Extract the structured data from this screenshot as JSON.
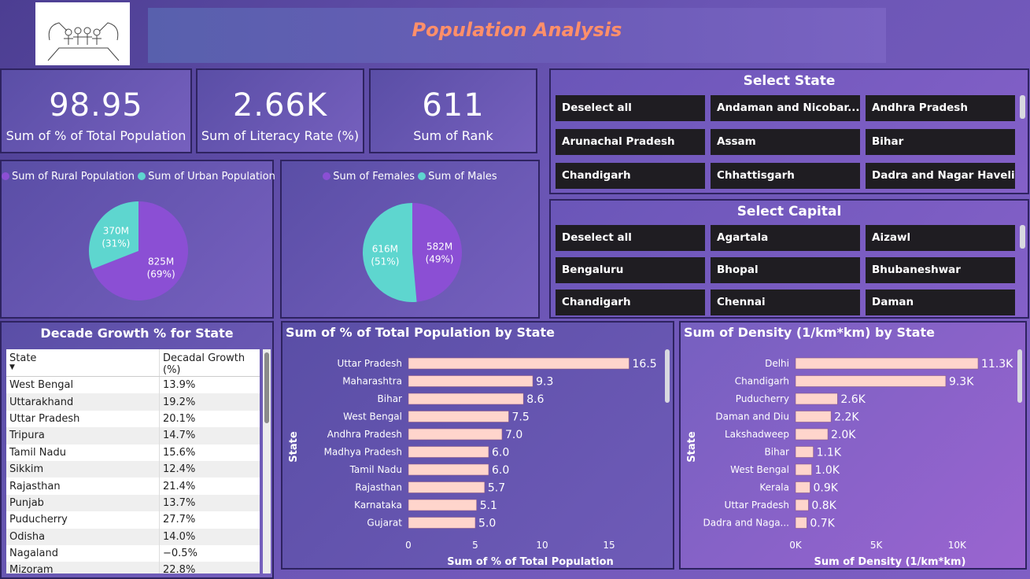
{
  "header": {
    "title": "Population Analysis"
  },
  "kpis": [
    {
      "value": "98.95",
      "label": "Sum of % of Total Population"
    },
    {
      "value": "2.66K",
      "label": "Sum of Literacy Rate (%)"
    },
    {
      "value": "611",
      "label": "Sum of Rank"
    }
  ],
  "pie_rural_urban": {
    "legend": [
      "Sum of Rural Population",
      "Sum of Urban Population"
    ],
    "colors": [
      "#8b4fd4",
      "#5ed6cf"
    ],
    "slices": [
      {
        "name": "Sum of Rural Population",
        "value": 825,
        "label": "825M",
        "pct": "(69%)"
      },
      {
        "name": "Sum of Urban Population",
        "value": 370,
        "label": "370M",
        "pct": "(31%)"
      }
    ]
  },
  "pie_gender": {
    "legend": [
      "Sum of Females",
      "Sum of Males"
    ],
    "colors": [
      "#8b4fd4",
      "#5ed6cf"
    ],
    "slices": [
      {
        "name": "Sum of Females",
        "value": 582,
        "label": "582M",
        "pct": "(49%)"
      },
      {
        "name": "Sum of Males",
        "value": 616,
        "label": "616M",
        "pct": "(51%)"
      }
    ]
  },
  "select_state": {
    "title": "Select State",
    "items": [
      "Deselect all",
      "Andaman and Nicobar...",
      "Andhra Pradesh",
      "Arunachal Pradesh",
      "Assam",
      "Bihar",
      "Chandigarh",
      "Chhattisgarh",
      "Dadra and Nagar Haveli"
    ]
  },
  "select_capital": {
    "title": "Select Capital",
    "items": [
      "Deselect all",
      "Agartala",
      "Aizawl",
      "Bengaluru",
      "Bhopal",
      "Bhubaneshwar",
      "Chandigarh",
      "Chennai",
      "Daman"
    ]
  },
  "growth_table": {
    "title": "Decade Growth % for State",
    "headers": [
      "State",
      "Decadal Growth (%)"
    ],
    "rows": [
      [
        "West Bengal",
        "13.9%"
      ],
      [
        "Uttarakhand",
        "19.2%"
      ],
      [
        "Uttar Pradesh",
        "20.1%"
      ],
      [
        "Tripura",
        "14.7%"
      ],
      [
        "Tamil Nadu",
        "15.6%"
      ],
      [
        "Sikkim",
        "12.4%"
      ],
      [
        "Rajasthan",
        "21.4%"
      ],
      [
        "Punjab",
        "13.7%"
      ],
      [
        "Puducherry",
        "27.7%"
      ],
      [
        "Odisha",
        "14.0%"
      ],
      [
        "Nagaland",
        "−0.5%"
      ],
      [
        "Mizoram",
        "22.8%"
      ]
    ]
  },
  "chart_data": [
    {
      "type": "bar",
      "orientation": "horizontal",
      "title": "Sum of % of Total Population by State",
      "xlabel": "Sum of % of Total Population",
      "ylabel": "State",
      "categories": [
        "Uttar Pradesh",
        "Maharashtra",
        "Bihar",
        "West Bengal",
        "Andhra Pradesh",
        "Madhya Pradesh",
        "Tamil Nadu",
        "Rajasthan",
        "Karnataka",
        "Gujarat"
      ],
      "values": [
        16.5,
        9.3,
        8.6,
        7.5,
        7.0,
        6.0,
        6.0,
        5.7,
        5.1,
        5.0
      ],
      "value_labels": [
        "16.5",
        "9.3",
        "8.6",
        "7.5",
        "7.0",
        "6.0",
        "6.0",
        "5.7",
        "5.1",
        "5.0"
      ],
      "ticks": [
        "0",
        "5",
        "10",
        "15"
      ],
      "xlim": [
        0,
        18
      ],
      "bar_color": "#ffd5cc"
    },
    {
      "type": "bar",
      "orientation": "horizontal",
      "title": "Sum of Density (1/km*km) by State",
      "xlabel": "Sum of Density (1/km*km)",
      "ylabel": "State",
      "categories": [
        "Delhi",
        "Chandigarh",
        "Puducherry",
        "Daman and Diu",
        "Lakshadweep",
        "Bihar",
        "West Bengal",
        "Kerala",
        "Uttar Pradesh",
        "Dadra and Naga..."
      ],
      "values": [
        11300,
        9300,
        2600,
        2200,
        2000,
        1100,
        1000,
        900,
        800,
        700
      ],
      "value_labels": [
        "11.3K",
        "9.3K",
        "2.6K",
        "2.2K",
        "2.0K",
        "1.1K",
        "1.0K",
        "0.9K",
        "0.8K",
        "0.7K"
      ],
      "ticks": [
        "0K",
        "5K",
        "10K"
      ],
      "xlim": [
        0,
        11300
      ],
      "bar_color": "#ffd5cc"
    }
  ]
}
